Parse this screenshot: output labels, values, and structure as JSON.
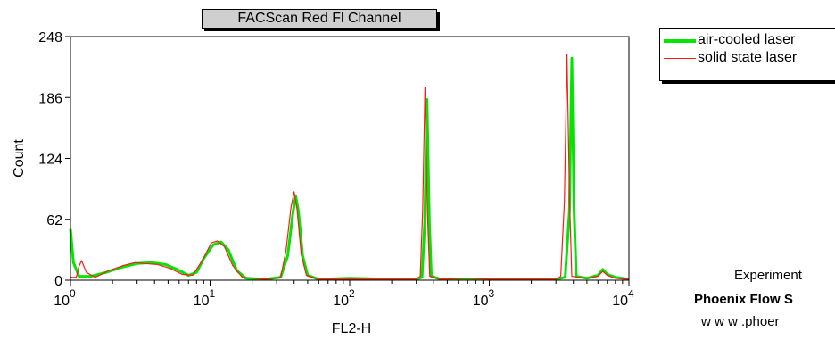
{
  "chart_data": {
    "type": "line",
    "title": "FACScan Red Fl Channel",
    "xlabel": "FL2-H",
    "ylabel": "Count",
    "x_scale": "log",
    "xlim": [
      1,
      10000
    ],
    "ylim": [
      0,
      248
    ],
    "y_ticks": [
      0,
      62,
      124,
      186,
      248
    ],
    "x_ticks": [
      1,
      10,
      100,
      1000,
      10000
    ],
    "x_tick_labels": [
      {
        "base": "10",
        "exp": "0"
      },
      {
        "base": "10",
        "exp": "1"
      },
      {
        "base": "10",
        "exp": "2"
      },
      {
        "base": "10",
        "exp": "3"
      },
      {
        "base": "10",
        "exp": "4"
      }
    ],
    "legend_position": "top-right, outside plot",
    "series": [
      {
        "name": "air-cooled laser",
        "color": "#00e600",
        "points": [
          [
            1,
            52
          ],
          [
            1.05,
            18
          ],
          [
            1.15,
            4
          ],
          [
            1.4,
            4
          ],
          [
            1.8,
            8
          ],
          [
            2.3,
            13
          ],
          [
            3.0,
            17
          ],
          [
            3.8,
            18
          ],
          [
            4.8,
            16
          ],
          [
            5.8,
            11
          ],
          [
            7.0,
            5
          ],
          [
            8.0,
            8
          ],
          [
            9.0,
            22
          ],
          [
            10.5,
            36
          ],
          [
            12.0,
            39
          ],
          [
            13.5,
            31
          ],
          [
            15.5,
            10
          ],
          [
            18,
            2
          ],
          [
            25,
            1
          ],
          [
            32,
            3
          ],
          [
            36,
            25
          ],
          [
            39,
            66
          ],
          [
            41,
            86
          ],
          [
            43,
            70
          ],
          [
            46,
            25
          ],
          [
            50,
            5
          ],
          [
            60,
            1
          ],
          [
            100,
            2
          ],
          [
            200,
            1
          ],
          [
            300,
            1
          ],
          [
            330,
            3
          ],
          [
            345,
            60
          ],
          [
            358,
            184
          ],
          [
            372,
            60
          ],
          [
            385,
            4
          ],
          [
            450,
            1
          ],
          [
            600,
            1
          ],
          [
            1000,
            1
          ],
          [
            2000,
            1
          ],
          [
            3000,
            1
          ],
          [
            3500,
            3
          ],
          [
            3750,
            70
          ],
          [
            3900,
            226
          ],
          [
            4050,
            70
          ],
          [
            4200,
            4
          ],
          [
            5000,
            2
          ],
          [
            6000,
            5
          ],
          [
            6500,
            11
          ],
          [
            7000,
            6
          ],
          [
            8000,
            3
          ],
          [
            10000,
            1
          ]
        ]
      },
      {
        "name": "solid state laser",
        "color": "#ff1a1a",
        "points": [
          [
            1,
            3
          ],
          [
            1.1,
            3
          ],
          [
            1.15,
            14
          ],
          [
            1.2,
            20
          ],
          [
            1.3,
            8
          ],
          [
            1.5,
            3
          ],
          [
            1.9,
            10
          ],
          [
            2.4,
            15
          ],
          [
            2.9,
            18
          ],
          [
            3.4,
            17
          ],
          [
            4.2,
            16
          ],
          [
            5.2,
            12
          ],
          [
            6.3,
            6
          ],
          [
            7.5,
            5
          ],
          [
            8.8,
            20
          ],
          [
            10.2,
            38
          ],
          [
            11.3,
            40
          ],
          [
            12.7,
            34
          ],
          [
            14.5,
            15
          ],
          [
            17,
            3
          ],
          [
            25,
            1
          ],
          [
            32,
            3
          ],
          [
            35,
            30
          ],
          [
            38,
            74
          ],
          [
            40,
            90
          ],
          [
            42,
            72
          ],
          [
            45,
            26
          ],
          [
            49,
            5
          ],
          [
            60,
            1
          ],
          [
            100,
            1
          ],
          [
            200,
            1
          ],
          [
            300,
            1
          ],
          [
            320,
            4
          ],
          [
            333,
            70
          ],
          [
            346,
            196
          ],
          [
            360,
            70
          ],
          [
            375,
            4
          ],
          [
            450,
            1
          ],
          [
            700,
            2
          ],
          [
            1000,
            1
          ],
          [
            2000,
            1
          ],
          [
            3000,
            1
          ],
          [
            3250,
            4
          ],
          [
            3450,
            80
          ],
          [
            3600,
            230
          ],
          [
            3760,
            80
          ],
          [
            3900,
            4
          ],
          [
            5000,
            2
          ],
          [
            6000,
            4
          ],
          [
            6500,
            9
          ],
          [
            7000,
            5
          ],
          [
            8000,
            2
          ],
          [
            10000,
            1
          ]
        ]
      }
    ]
  },
  "footer": {
    "line1": "Experiment",
    "line2": "Phoenix Flow S",
    "line3": "w w w .phoer"
  }
}
